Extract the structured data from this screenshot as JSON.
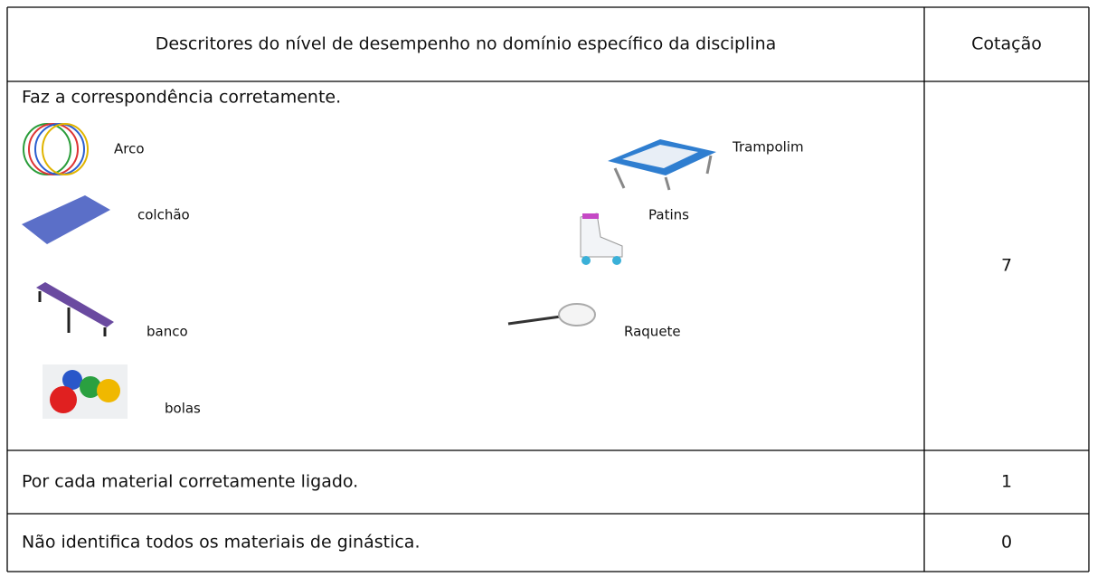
{
  "table": {
    "header": [
      "Descritores do nível de desempenho no domínio específico da disciplina",
      "Cotação"
    ],
    "rows": [
      {
        "descriptor": "Faz a correspondência corretamente.",
        "items": [
          "Arco",
          "Trampolim",
          "colchão",
          "Patins",
          "banco",
          "Raquete",
          "bolas"
        ],
        "score": 7
      },
      {
        "descriptor": "Por cada material corretamente ligado.",
        "score": 1
      },
      {
        "descriptor": "Não identifica todos os materiais de ginástica.",
        "score": 0
      }
    ]
  }
}
